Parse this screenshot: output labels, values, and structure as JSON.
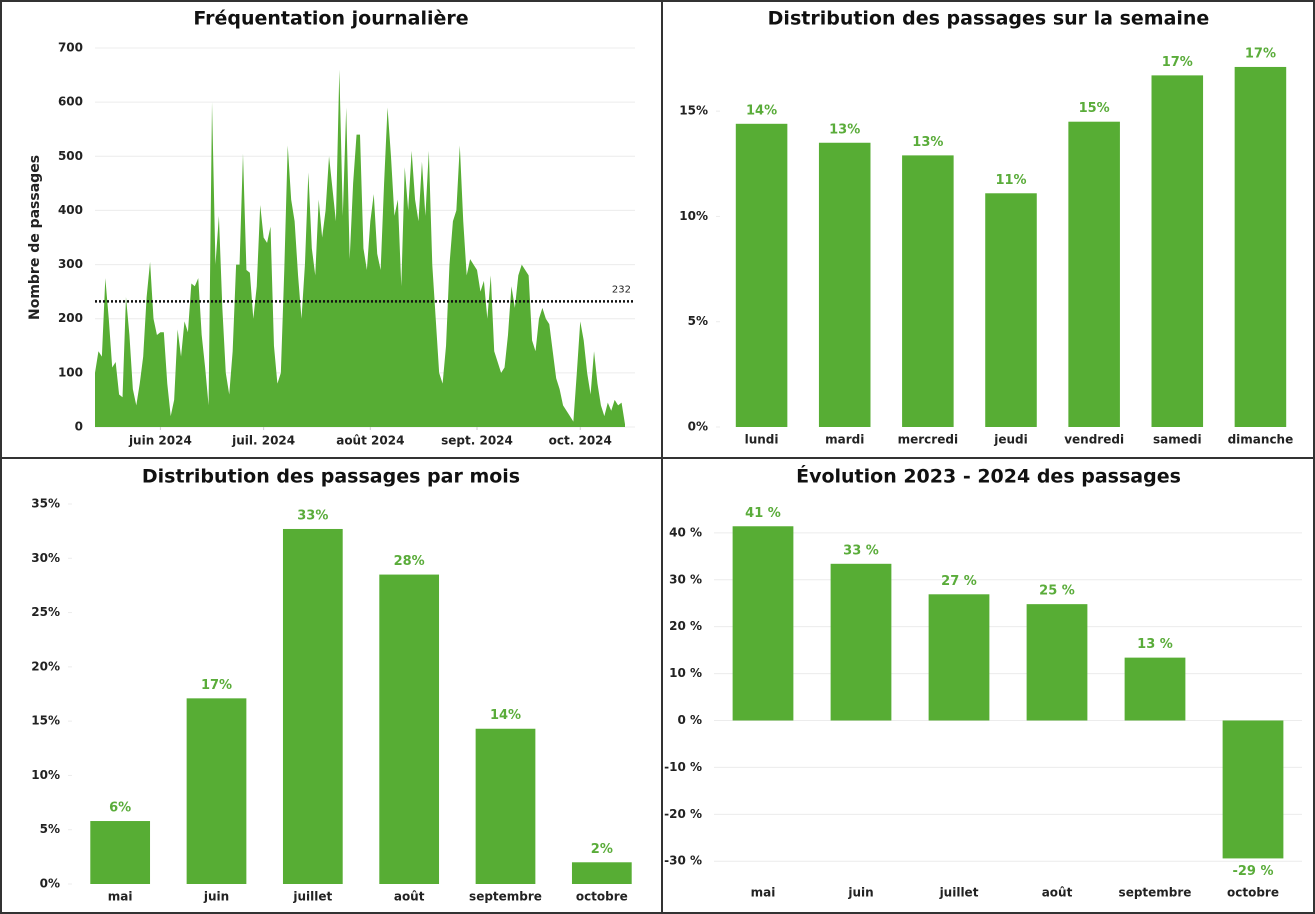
{
  "chart_data": [
    {
      "type": "area",
      "title": "Fréquentation journalière",
      "ylabel": "Nombre de passages",
      "color": "#57ad34",
      "values": [
        100,
        140,
        130,
        275,
        200,
        110,
        120,
        60,
        55,
        240,
        170,
        70,
        40,
        80,
        130,
        240,
        305,
        200,
        170,
        175,
        175,
        80,
        20,
        50,
        180,
        130,
        195,
        175,
        265,
        260,
        275,
        170,
        110,
        40,
        600,
        300,
        390,
        220,
        100,
        60,
        140,
        300,
        300,
        505,
        290,
        285,
        200,
        260,
        410,
        350,
        340,
        370,
        150,
        80,
        100,
        290,
        520,
        420,
        380,
        280,
        200,
        300,
        470,
        330,
        280,
        420,
        350,
        400,
        500,
        440,
        380,
        660,
        390,
        590,
        310,
        450,
        540,
        540,
        330,
        290,
        380,
        430,
        320,
        290,
        450,
        590,
        500,
        390,
        420,
        260,
        480,
        400,
        510,
        420,
        380,
        490,
        390,
        510,
        300,
        200,
        100,
        80,
        150,
        300,
        380,
        400,
        520,
        380,
        280,
        310,
        300,
        290,
        250,
        270,
        200,
        280,
        140,
        120,
        100,
        110,
        170,
        260,
        220,
        280,
        300,
        290,
        280,
        160,
        140,
        200,
        220,
        200,
        190,
        140,
        90,
        70,
        40,
        30,
        20,
        10,
        100,
        195,
        160,
        100,
        60,
        140,
        80,
        40,
        20,
        45,
        30,
        50,
        40,
        45,
        5
      ],
      "xlim": [
        0,
        154
      ],
      "xticks": [
        {
          "value": 19,
          "label": "juin 2024"
        },
        {
          "value": 49,
          "label": "juil. 2024"
        },
        {
          "value": 80,
          "label": "août 2024"
        },
        {
          "value": 111,
          "label": "sept. 2024"
        },
        {
          "value": 141,
          "label": "oct. 2024"
        }
      ],
      "ylim": [
        0,
        700
      ],
      "yticks": [
        0,
        100,
        200,
        300,
        400,
        500,
        600,
        700
      ],
      "grid": true,
      "reference_line": 232
    },
    {
      "type": "bar",
      "title": "Distribution des passages sur la semaine",
      "color": "#57ad34",
      "categories": [
        "lundi",
        "mardi",
        "mercredi",
        "jeudi",
        "vendredi",
        "samedi",
        "dimanche"
      ],
      "values": [
        14.4,
        13.5,
        12.9,
        11.1,
        14.5,
        16.7,
        17.1
      ],
      "value_labels": [
        "14%",
        "13%",
        "13%",
        "11%",
        "15%",
        "17%",
        "17%"
      ],
      "ylim": [
        0,
        18
      ],
      "yticks": [
        {
          "value": 0,
          "label": "0%"
        },
        {
          "value": 5,
          "label": "5%"
        },
        {
          "value": 10,
          "label": "10%"
        },
        {
          "value": 15,
          "label": "15%"
        }
      ],
      "grid": false
    },
    {
      "type": "bar",
      "title": "Distribution des passages par mois",
      "color": "#57ad34",
      "categories": [
        "mai",
        "juin",
        "juillet",
        "août",
        "septembre",
        "octobre"
      ],
      "values": [
        5.8,
        17.1,
        32.7,
        28.5,
        14.3,
        2.0
      ],
      "value_labels": [
        "6%",
        "17%",
        "33%",
        "28%",
        "14%",
        "2%"
      ],
      "ylim": [
        0,
        35
      ],
      "yticks": [
        {
          "value": 0,
          "label": "0%"
        },
        {
          "value": 5,
          "label": "5%"
        },
        {
          "value": 10,
          "label": "10%"
        },
        {
          "value": 15,
          "label": "15%"
        },
        {
          "value": 20,
          "label": "20%"
        },
        {
          "value": 25,
          "label": "25%"
        },
        {
          "value": 30,
          "label": "30%"
        },
        {
          "value": 35,
          "label": "35%"
        }
      ],
      "grid": false
    },
    {
      "type": "bar",
      "title": "Évolution 2023 - 2024 des passages",
      "color": "#57ad34",
      "categories": [
        "mai",
        "juin",
        "juillet",
        "août",
        "septembre",
        "octobre"
      ],
      "values": [
        41.4,
        33.4,
        26.9,
        24.8,
        13.4,
        -29.4
      ],
      "value_labels": [
        "41 %",
        "33 %",
        "27 %",
        "25 %",
        "13 %",
        "-29 %"
      ],
      "ylim": [
        -34,
        47
      ],
      "yticks": [
        {
          "value": -30,
          "label": "-30 %"
        },
        {
          "value": -20,
          "label": "-20 %"
        },
        {
          "value": -10,
          "label": "-10 %"
        },
        {
          "value": 0,
          "label": "0 %"
        },
        {
          "value": 10,
          "label": "10 %"
        },
        {
          "value": 20,
          "label": "20 %"
        },
        {
          "value": 30,
          "label": "30 %"
        },
        {
          "value": 40,
          "label": "40 %"
        }
      ],
      "grid": true
    }
  ]
}
